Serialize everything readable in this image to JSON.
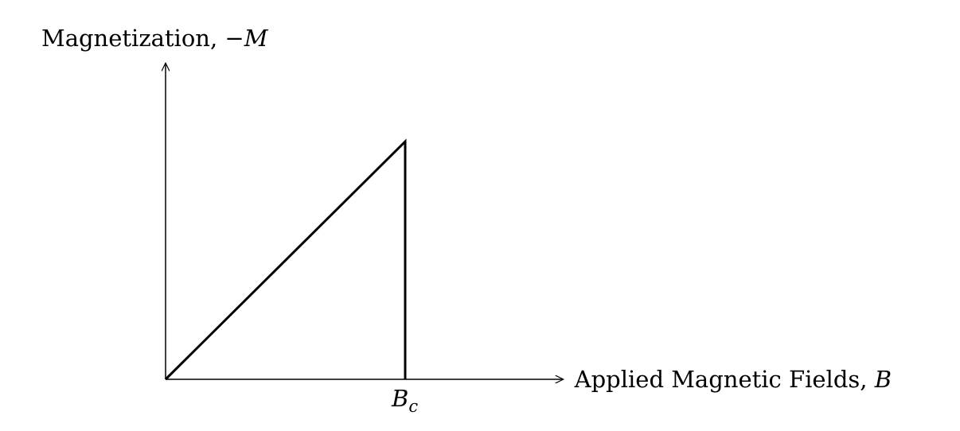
{
  "chart_data": {
    "type": "line",
    "ylabel": {
      "text": "Magnetization, ",
      "symbol": "−M"
    },
    "xlabel": {
      "text": "Applied Magnetic Fields, ",
      "symbol": "B"
    },
    "ticks": [
      {
        "x": 1,
        "base": "B",
        "sub": "c"
      }
    ],
    "series": [
      {
        "x": [
          0,
          1,
          1
        ],
        "y": [
          0,
          1,
          0
        ]
      }
    ],
    "xlim": [
      0,
      1.66
    ],
    "ylim": [
      0,
      1.33
    ],
    "grid": false,
    "legend": false,
    "colors": {
      "line": "#000000",
      "axes": "#000000"
    }
  }
}
